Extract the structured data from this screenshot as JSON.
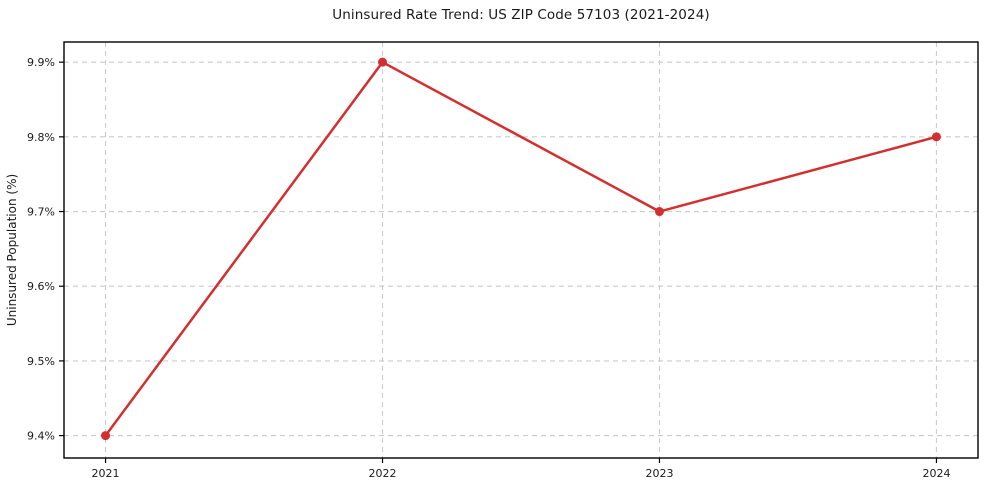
{
  "chart_data": {
    "type": "line",
    "title": "Uninsured Rate Trend: US ZIP Code 57103 (2021-2024)",
    "xlabel": "",
    "ylabel": "Uninsured Population (%)",
    "x": [
      2021,
      2022,
      2023,
      2024
    ],
    "x_tick_labels": [
      "2021",
      "2022",
      "2023",
      "2024"
    ],
    "values": [
      9.4,
      9.9,
      9.7,
      9.8
    ],
    "y_ticks": [
      9.4,
      9.5,
      9.6,
      9.7,
      9.8,
      9.9
    ],
    "y_tick_labels": [
      "9.4%",
      "9.5%",
      "9.6%",
      "9.7%",
      "9.8%",
      "9.9%"
    ],
    "xlim": [
      2020.85,
      2024.15
    ],
    "ylim": [
      9.37,
      9.927
    ],
    "grid": true,
    "grid_style": "dashed",
    "legend_position": "none",
    "colors": {
      "line": "#d32f2f",
      "marker": "#d32f2f",
      "grid": "#cccccc",
      "spine": "#000000",
      "text": "#1a1a1a",
      "background": "#ffffff"
    }
  }
}
